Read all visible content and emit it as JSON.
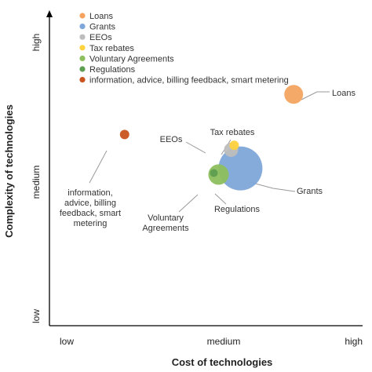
{
  "chart_data": {
    "type": "scatter",
    "subtype": "bubble",
    "title": "",
    "xlabel": "Cost of technologies",
    "ylabel": "Complexity of technologies",
    "xlim": [
      0,
      10
    ],
    "ylim": [
      0,
      10
    ],
    "x_ticks": [
      "low",
      "medium",
      "high"
    ],
    "y_ticks": [
      "low",
      "medium",
      "high"
    ],
    "grid": false,
    "legend": {
      "position": "top-left"
    },
    "series": [
      {
        "name": "Loans",
        "color": "#F4A460",
        "x": 7.8,
        "y": 7.5,
        "size": 12,
        "annotation": [
          "Loans"
        ]
      },
      {
        "name": "Grants",
        "color": "#7EA6D9",
        "x": 6.1,
        "y": 5.1,
        "size": 28,
        "annotation": [
          "Grants"
        ]
      },
      {
        "name": "EEOs",
        "color": "#BDBDBD",
        "x": 5.8,
        "y": 5.7,
        "size": 9,
        "annotation": [
          "EEOs"
        ]
      },
      {
        "name": "Tax rebates",
        "color": "#FFD23F",
        "x": 5.9,
        "y": 5.85,
        "size": 6,
        "annotation": [
          "Tax rebates"
        ]
      },
      {
        "name": "Voluntary Agreements",
        "color": "#8DBF5E",
        "x": 5.4,
        "y": 4.9,
        "size": 13,
        "annotation": [
          "Voluntary",
          "Agreements"
        ]
      },
      {
        "name": "Regulations",
        "color": "#5E9E50",
        "x": 5.25,
        "y": 4.95,
        "size": 5,
        "annotation": [
          "Regulations"
        ]
      },
      {
        "name": "information, advice, billing feedback, smart metering",
        "color": "#C9541E",
        "x": 2.4,
        "y": 6.2,
        "size": 6,
        "annotation": [
          "information,",
          "advice, billing",
          "feedback, smart",
          "metering"
        ]
      }
    ]
  }
}
